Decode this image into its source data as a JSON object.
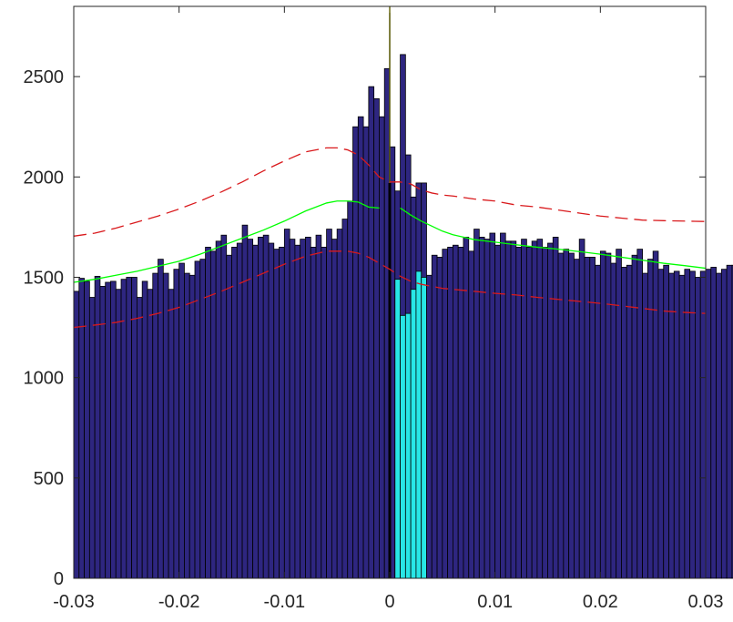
{
  "chart_data": {
    "type": "bar",
    "title": "",
    "xlabel": "",
    "ylabel": "",
    "xlim": [
      -0.03,
      0.03
    ],
    "ylim": [
      0,
      2850
    ],
    "grid": false,
    "legend": "none",
    "x_ticks": [
      -0.03,
      -0.02,
      -0.01,
      0,
      0.01,
      0.02,
      0.03
    ],
    "x_tick_labels": [
      "-0.03",
      "-0.02",
      "-0.01",
      "0",
      "0.01",
      "0.02",
      "0.03"
    ],
    "y_ticks": [
      0,
      500,
      1000,
      1500,
      2000,
      2500
    ],
    "y_tick_labels": [
      "0",
      "500",
      "1000",
      "1500",
      "2000",
      "2500"
    ],
    "bin_width": 0.0005,
    "bar_edge_color": "#000000",
    "series": [
      {
        "kind": "bars",
        "color": "#2e2680",
        "x_start": -0.03,
        "values": [
          1430,
          1495,
          1480,
          1400,
          1505,
          1455,
          1475,
          1480,
          1440,
          1490,
          1500,
          1500,
          1400,
          1480,
          1440,
          1520,
          1590,
          1520,
          1440,
          1540,
          1570,
          1520,
          1510,
          1580,
          1590,
          1650,
          1630,
          1680,
          1710,
          1610,
          1650,
          1670,
          1760,
          1690,
          1660,
          1700,
          1710,
          1670,
          1640,
          1650,
          1740,
          1690,
          1660,
          1690,
          1700,
          1650,
          1710,
          1650,
          1740,
          1690,
          1740,
          1790,
          1880,
          2250,
          2300,
          2250,
          2450,
          2390,
          2300,
          2540,
          2150,
          1930,
          2610,
          2110,
          1900,
          1970,
          1970
        ]
      },
      {
        "kind": "bars",
        "color": "#28e6e6",
        "x_start": 0.0005,
        "values": [
          1490,
          1310,
          1320,
          1440,
          1530,
          1500
        ]
      },
      {
        "kind": "bars",
        "color": "#2e2680",
        "x_start": 0.0035,
        "values": [
          1510,
          1610,
          1600,
          1640,
          1650,
          1660,
          1650,
          1700,
          1630,
          1740,
          1700,
          1690,
          1720,
          1660,
          1720,
          1680,
          1680,
          1650,
          1690,
          1650,
          1680,
          1690,
          1650,
          1670,
          1700,
          1620,
          1640,
          1620,
          1590,
          1690,
          1600,
          1600,
          1560,
          1630,
          1620,
          1570,
          1640,
          1550,
          1560,
          1610,
          1640,
          1520,
          1590,
          1630,
          1540,
          1560,
          1520,
          1530,
          1510,
          1540,
          1530,
          1500,
          1530,
          1540,
          1550,
          1520,
          1540,
          1560,
          1560,
          1490
        ]
      },
      {
        "kind": "line",
        "name": "",
        "color": "#00ff00",
        "style": "solid",
        "x": [
          -0.03,
          -0.028,
          -0.026,
          -0.024,
          -0.022,
          -0.02,
          -0.018,
          -0.016,
          -0.014,
          -0.012,
          -0.01,
          -0.008,
          -0.006,
          -0.005,
          -0.004,
          -0.003,
          -0.002,
          -0.001
        ],
        "y": [
          1475,
          1490,
          1510,
          1530,
          1555,
          1580,
          1615,
          1655,
          1695,
          1735,
          1780,
          1830,
          1870,
          1880,
          1880,
          1875,
          1850,
          1845
        ]
      },
      {
        "kind": "line",
        "name": "",
        "color": "#00ff00",
        "style": "solid",
        "x": [
          0.001,
          0.002,
          0.003,
          0.004,
          0.005,
          0.006,
          0.007,
          0.008,
          0.01,
          0.012,
          0.014,
          0.016,
          0.018,
          0.02,
          0.022,
          0.024,
          0.026,
          0.028,
          0.03
        ],
        "y": [
          1845,
          1810,
          1780,
          1755,
          1730,
          1712,
          1700,
          1688,
          1675,
          1662,
          1650,
          1640,
          1628,
          1615,
          1600,
          1585,
          1570,
          1558,
          1545
        ]
      },
      {
        "kind": "line",
        "name": "",
        "color": "#d9191c",
        "style": "dashed",
        "x": [
          -0.03,
          -0.028,
          -0.026,
          -0.024,
          -0.022,
          -0.02,
          -0.018,
          -0.016,
          -0.014,
          -0.012,
          -0.01,
          -0.008,
          -0.006,
          -0.005,
          -0.004,
          -0.003,
          -0.002,
          -0.001,
          0.0,
          0.001,
          0.002,
          0.003,
          0.004,
          0.005,
          0.006,
          0.008,
          0.01,
          0.012,
          0.014,
          0.016,
          0.018,
          0.02,
          0.022,
          0.024,
          0.026,
          0.028,
          0.03
        ],
        "y": [
          1705,
          1720,
          1745,
          1775,
          1805,
          1840,
          1880,
          1925,
          1975,
          2030,
          2080,
          2125,
          2145,
          2145,
          2135,
          2110,
          2060,
          2000,
          1975,
          1975,
          1965,
          1935,
          1920,
          1910,
          1905,
          1890,
          1880,
          1860,
          1850,
          1835,
          1820,
          1805,
          1795,
          1785,
          1782,
          1780,
          1778
        ]
      },
      {
        "kind": "line",
        "name": "",
        "color": "#d9191c",
        "style": "dashed",
        "x": [
          -0.03,
          -0.028,
          -0.026,
          -0.024,
          -0.022,
          -0.02,
          -0.018,
          -0.016,
          -0.014,
          -0.012,
          -0.01,
          -0.008,
          -0.006,
          -0.005,
          -0.004,
          -0.003,
          -0.002,
          -0.001,
          0.0,
          0.001,
          0.002,
          0.003,
          0.004,
          0.005,
          0.006,
          0.008,
          0.01,
          0.012,
          0.014,
          0.016,
          0.018,
          0.02,
          0.022,
          0.024,
          0.026,
          0.028,
          0.03
        ],
        "y": [
          1250,
          1262,
          1275,
          1295,
          1320,
          1350,
          1390,
          1430,
          1475,
          1520,
          1565,
          1605,
          1630,
          1630,
          1630,
          1620,
          1600,
          1570,
          1540,
          1505,
          1480,
          1465,
          1455,
          1445,
          1440,
          1430,
          1420,
          1412,
          1400,
          1390,
          1380,
          1370,
          1358,
          1345,
          1332,
          1325,
          1320
        ]
      }
    ],
    "reference_lines": [
      {
        "orientation": "vertical",
        "x": 0,
        "color": "#ffff00"
      },
      {
        "orientation": "vertical",
        "x": 0,
        "color": "#000000",
        "style": "thin"
      }
    ]
  }
}
